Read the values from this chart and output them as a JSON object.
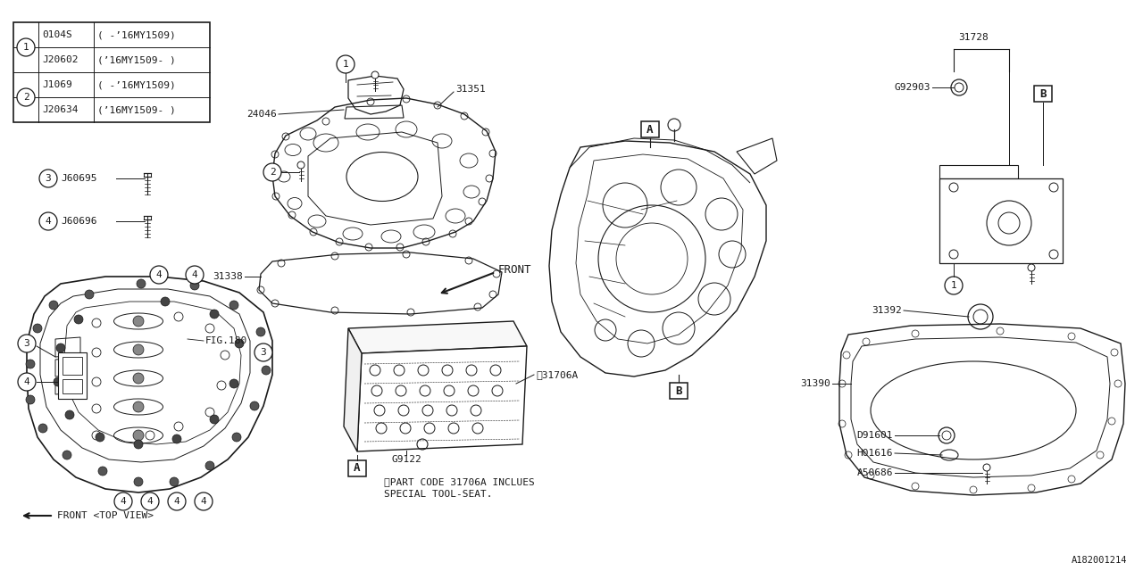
{
  "bg_color": "#ffffff",
  "line_color": "#1a1a1a",
  "table_data": [
    [
      "0104S",
      "( -’16MY1509)"
    ],
    [
      "J20602",
      "(’16MY1509- )"
    ],
    [
      "J1069",
      "( -’16MY1509)"
    ],
    [
      "J20634",
      "(’16MY1509- )"
    ]
  ],
  "note_lines": [
    "※PART CODE 31706A INCLUES",
    "SPECIAL TOOL-SEAT."
  ]
}
